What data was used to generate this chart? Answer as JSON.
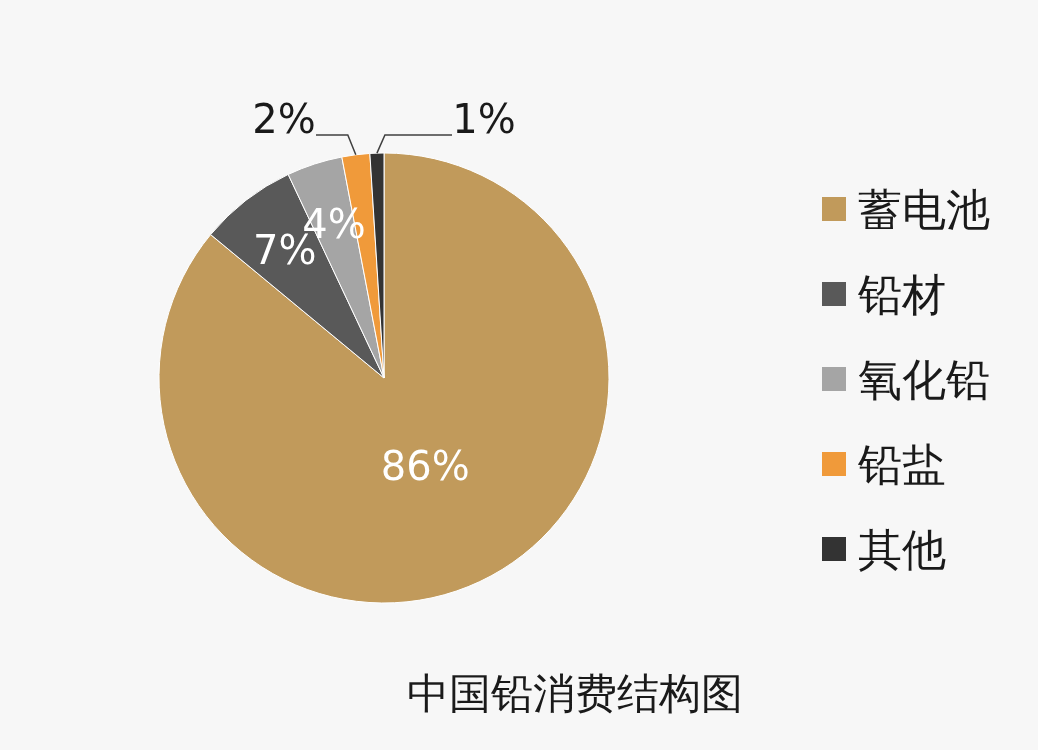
{
  "chart_data": {
    "type": "pie",
    "title": "中国铅消费结构图",
    "categories": [
      "蓄电池",
      "铅材",
      "氧化铅",
      "铅盐",
      "其他"
    ],
    "values": [
      86,
      7,
      4,
      2,
      1
    ],
    "value_labels": [
      "86%",
      "7%",
      "4%",
      "2%",
      "1%"
    ],
    "colors": [
      "#c19a5b",
      "#595959",
      "#a5a5a5",
      "#f09a3a",
      "#333333"
    ],
    "legend": "right"
  }
}
